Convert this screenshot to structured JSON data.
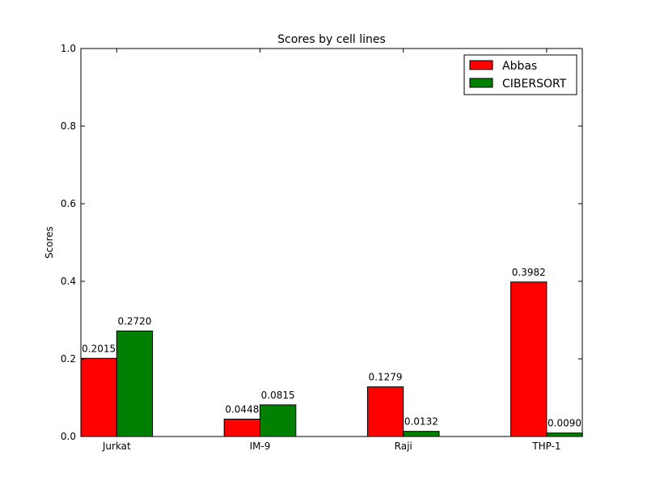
{
  "chart_data": {
    "type": "bar",
    "title": "Scores by cell lines",
    "xlabel": "",
    "ylabel": "Scores",
    "ylim": [
      0,
      1.0
    ],
    "yticks": [
      "0.0",
      "0.2",
      "0.4",
      "0.6",
      "0.8",
      "1.0"
    ],
    "categories": [
      "Jurkat",
      "IM-9",
      "Raji",
      "THP-1"
    ],
    "series": [
      {
        "name": "Abbas",
        "color": "#ff0000",
        "values": [
          0.2015,
          0.0448,
          0.1279,
          0.3982
        ],
        "labels": [
          "0.2015",
          "0.0448",
          "0.1279",
          "0.3982"
        ]
      },
      {
        "name": "CIBERSORT",
        "color": "#008000",
        "values": [
          0.272,
          0.0815,
          0.0132,
          0.009
        ],
        "labels": [
          "0.2720",
          "0.0815",
          "0.0132",
          "0.0090"
        ]
      }
    ],
    "legend_position": "top-right",
    "grid": false
  }
}
